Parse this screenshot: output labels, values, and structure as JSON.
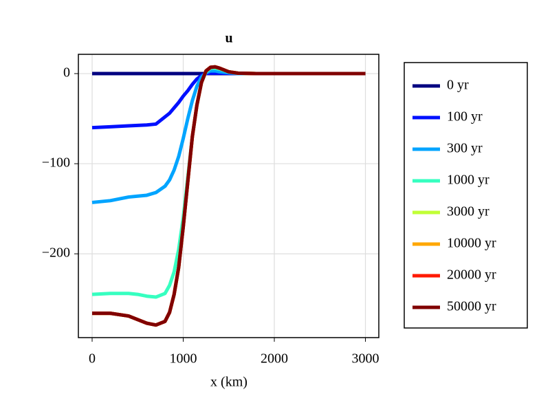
{
  "chart_data": {
    "type": "line",
    "title": "u",
    "xlabel": "x (km)",
    "x": [
      0,
      200,
      400,
      500,
      600,
      700,
      800,
      850,
      900,
      950,
      1000,
      1050,
      1100,
      1150,
      1200,
      1250,
      1300,
      1350,
      1400,
      1500,
      1600,
      1800,
      2000,
      2500,
      3000
    ],
    "series": [
      {
        "name": "0 yr",
        "color": "#000080",
        "values": [
          0,
          0,
          0,
          0,
          0,
          0,
          0,
          0,
          0,
          0,
          0,
          0,
          0,
          0,
          0,
          0,
          0,
          0,
          0,
          0,
          0,
          0,
          0,
          0,
          0
        ]
      },
      {
        "name": "100 yr",
        "color": "#0010ff",
        "values": [
          -60,
          -59,
          -58,
          -57.5,
          -57,
          -56,
          -48,
          -44,
          -38,
          -32,
          -25,
          -19,
          -12,
          -6,
          -2,
          0,
          0.5,
          0.5,
          0.5,
          0.3,
          0,
          0,
          0,
          0,
          0
        ]
      },
      {
        "name": "300 yr",
        "color": "#00a4ff",
        "values": [
          -143,
          -141,
          -137,
          -136,
          -135,
          -132,
          -125,
          -118,
          -107,
          -92,
          -72,
          -50,
          -30,
          -14,
          -4,
          1,
          3,
          3,
          2,
          1,
          0,
          0,
          0,
          0,
          0
        ]
      },
      {
        "name": "1000 yr",
        "color": "#36ffc0",
        "values": [
          -245,
          -244,
          -244,
          -245,
          -247,
          -248,
          -244,
          -235,
          -220,
          -195,
          -160,
          -115,
          -70,
          -35,
          -10,
          2,
          6,
          6,
          5,
          2,
          0.5,
          0,
          0,
          0,
          0
        ]
      },
      {
        "name": "3000 yr",
        "color": "#c1ff36",
        "values": [
          -266,
          -266,
          -269,
          -273,
          -277,
          -279,
          -275,
          -265,
          -245,
          -215,
          -170,
          -120,
          -70,
          -35,
          -10,
          3,
          7,
          7.5,
          6,
          2,
          0.5,
          0,
          0,
          0,
          0
        ]
      },
      {
        "name": "10000 yr",
        "color": "#ffa700",
        "values": [
          -266,
          -266,
          -269,
          -273,
          -277,
          -279,
          -275,
          -265,
          -245,
          -215,
          -170,
          -120,
          -70,
          -35,
          -10,
          3,
          7,
          7.5,
          6,
          2,
          0.5,
          0,
          0,
          0,
          0
        ]
      },
      {
        "name": "20000 yr",
        "color": "#ff1a00",
        "values": [
          -266,
          -266,
          -269,
          -273,
          -277,
          -279,
          -275,
          -265,
          -245,
          -215,
          -170,
          -120,
          -70,
          -35,
          -10,
          3,
          7,
          7.5,
          6,
          2,
          0.5,
          0,
          0,
          0,
          0
        ]
      },
      {
        "name": "50000 yr",
        "color": "#800000",
        "values": [
          -266,
          -266,
          -269,
          -273,
          -277,
          -279,
          -275,
          -265,
          -245,
          -215,
          -170,
          -120,
          -70,
          -35,
          -10,
          3,
          7,
          7.5,
          6,
          2,
          0.5,
          0,
          0,
          0,
          0
        ]
      }
    ],
    "xlim": [
      -151,
      3147
    ],
    "ylim": [
      -293,
      21.4
    ],
    "xticks": [
      0,
      1000,
      2000,
      3000
    ],
    "yticks": [
      {
        "value": -200,
        "label": "−200"
      },
      {
        "value": -100,
        "label": "−100"
      },
      0
    ],
    "grid": true
  }
}
